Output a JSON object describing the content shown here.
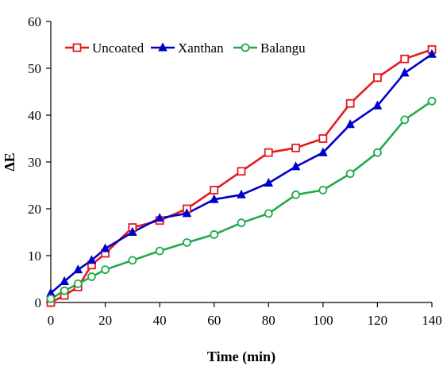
{
  "chart_data": {
    "type": "line",
    "title": "",
    "xlabel": "Time (min)",
    "ylabel": "ΔE",
    "xlim": [
      0,
      140
    ],
    "ylim": [
      0,
      60
    ],
    "xticks": [
      0,
      20,
      40,
      60,
      80,
      100,
      120,
      140
    ],
    "yticks": [
      0,
      10,
      20,
      30,
      40,
      50,
      60
    ],
    "grid": false,
    "legend_position": "top-left",
    "series": [
      {
        "name": "Uncoated",
        "color": "#e31a1c",
        "marker": "open-square",
        "x": [
          0,
          5,
          10,
          15,
          20,
          30,
          40,
          50,
          60,
          70,
          80,
          90,
          100,
          110,
          120,
          130,
          140
        ],
        "y": [
          0,
          1.5,
          3.3,
          8,
          10.5,
          16,
          17.5,
          20,
          24,
          28,
          32,
          33,
          35,
          42.5,
          48,
          52,
          54
        ]
      },
      {
        "name": "Xanthan",
        "color": "#0000cc",
        "marker": "filled-triangle",
        "x": [
          0,
          5,
          10,
          15,
          20,
          30,
          40,
          50,
          60,
          70,
          80,
          90,
          100,
          110,
          120,
          130,
          140
        ],
        "y": [
          2,
          4.5,
          7,
          9,
          11.5,
          15,
          18,
          19,
          22,
          23,
          25.5,
          29,
          32,
          38,
          42,
          49,
          53
        ]
      },
      {
        "name": "Balangu",
        "color": "#22aa4a",
        "marker": "open-circle",
        "x": [
          0,
          5,
          10,
          15,
          20,
          30,
          40,
          50,
          60,
          70,
          80,
          90,
          100,
          110,
          120,
          130,
          140
        ],
        "y": [
          0.8,
          2.5,
          4,
          5.5,
          7,
          9,
          11,
          12.8,
          14.5,
          17,
          19,
          23,
          24,
          27.5,
          32,
          39,
          43
        ]
      }
    ]
  }
}
